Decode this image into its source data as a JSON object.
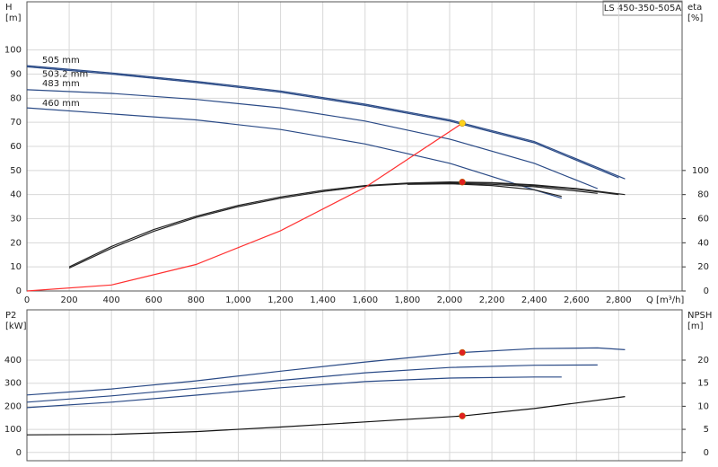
{
  "chart_data": [
    {
      "type": "line",
      "legend": "LS 450-350-505A",
      "xlabel": "Q [m³/h]",
      "ylabel": [
        "H",
        "[m]"
      ],
      "y2label": [
        "eta",
        "[%]"
      ],
      "xlim": [
        0,
        3100
      ],
      "ylim": [
        0,
        120
      ],
      "y2lim": [
        0,
        240
      ],
      "grid": true,
      "xticks": [
        0,
        200,
        400,
        600,
        800,
        {
          "value": 1000,
          "label": "1,000"
        },
        {
          "value": 1200,
          "label": "1,200"
        },
        {
          "value": 1400,
          "label": "1,400"
        },
        {
          "value": 1600,
          "label": "1,600"
        },
        {
          "value": 1800,
          "label": "1,800"
        },
        {
          "value": 2000,
          "label": "2,000"
        },
        {
          "value": 2200,
          "label": "2,200"
        },
        {
          "value": 2400,
          "label": "2,400"
        },
        {
          "value": 2600,
          "label": "2,600"
        },
        {
          "value": 2800,
          "label": "2,800"
        }
      ],
      "yticks": [
        0,
        10,
        20,
        30,
        40,
        50,
        60,
        70,
        80,
        90,
        100
      ],
      "y2ticks": [
        0,
        20,
        40,
        60,
        80,
        100
      ],
      "series": [
        {
          "name": "505 mm",
          "color": "#2a4a86",
          "x": [
            0,
            400,
            800,
            1200,
            1600,
            2000,
            2400,
            2830
          ],
          "values": [
            93.5,
            90.5,
            87,
            83,
            77.5,
            71,
            62,
            46.5
          ]
        },
        {
          "name": "503.2 mm",
          "color": "#2a4a86",
          "x": [
            0,
            400,
            800,
            1200,
            1600,
            2000,
            2400,
            2800
          ],
          "values": [
            93,
            90,
            86.5,
            82.5,
            77,
            70.5,
            61.5,
            47
          ]
        },
        {
          "name": "483 mm",
          "color": "#2a4a86",
          "x": [
            0,
            400,
            800,
            1200,
            1600,
            2000,
            2400,
            2700
          ],
          "values": [
            83.5,
            82,
            79.5,
            76,
            70.5,
            63,
            53,
            42.5
          ]
        },
        {
          "name": "460 mm",
          "color": "#2a4a86",
          "x": [
            0,
            400,
            800,
            1200,
            1600,
            2000,
            2400,
            2530
          ],
          "values": [
            76,
            73.5,
            71,
            67,
            61,
            53,
            42,
            38.5
          ]
        },
        {
          "color": "#222222",
          "axis": "y2",
          "x": [
            200,
            400,
            600,
            800,
            1000,
            1200,
            1400,
            1600,
            1800,
            2000,
            2200,
            2400,
            2600,
            2830
          ],
          "values": [
            20,
            37,
            51,
            62,
            71,
            78,
            83.5,
            87.5,
            89.5,
            90.5,
            90,
            88,
            85,
            80
          ]
        },
        {
          "color": "#222222",
          "axis": "y2",
          "x": [
            200,
            400,
            600,
            800,
            1000,
            1200,
            1400,
            1600,
            1800,
            2000,
            2200,
            2400,
            2600,
            2800
          ],
          "values": [
            19,
            35.5,
            49.5,
            61,
            70,
            77,
            82.5,
            87,
            89,
            90,
            89.5,
            87.5,
            84.5,
            80
          ]
        },
        {
          "color": "#222222",
          "axis": "y2",
          "x": [
            1800,
            2000,
            2200,
            2400,
            2600,
            2700
          ],
          "values": [
            89,
            89.5,
            88.5,
            86.5,
            83,
            81
          ]
        },
        {
          "color": "#222222",
          "axis": "y2",
          "x": [
            1800,
            2000,
            2200,
            2400,
            2530
          ],
          "values": [
            88.5,
            89,
            87.5,
            84,
            78.5
          ]
        },
        {
          "color": "#ff3030",
          "x": [
            0,
            400,
            800,
            1200,
            1600,
            2060
          ],
          "values": [
            0,
            2.5,
            11,
            25,
            43,
            69.6
          ]
        }
      ],
      "markers": [
        {
          "x": 2060,
          "y": 69.6,
          "color": "#ffd21a"
        },
        {
          "x": 2060,
          "y": 90.4,
          "axis": "y2",
          "color": "#e02020"
        }
      ]
    },
    {
      "type": "line",
      "ylabel": [
        "P2",
        "[kW]"
      ],
      "y2label": [
        "NPSH",
        "[m]"
      ],
      "xlim": [
        0,
        3100
      ],
      "ylim": [
        -36,
        618
      ],
      "y2lim": [
        -1.8,
        30.9
      ],
      "grid": true,
      "yticks": [
        0,
        100,
        200,
        300,
        400
      ],
      "y2ticks": [
        0,
        5,
        10,
        15,
        20
      ],
      "series": [
        {
          "color": "#2a4a86",
          "x": [
            0,
            400,
            800,
            1200,
            1600,
            2060,
            2400,
            2700,
            2830
          ],
          "values": [
            249,
            275,
            310,
            352,
            392,
            433,
            450,
            453,
            445
          ]
        },
        {
          "color": "#2a4a86",
          "x": [
            0,
            400,
            800,
            1200,
            1600,
            2000,
            2400,
            2700
          ],
          "values": [
            218,
            245,
            278,
            312,
            345,
            368,
            378,
            379
          ]
        },
        {
          "color": "#2a4a86",
          "x": [
            0,
            400,
            800,
            1200,
            1600,
            2000,
            2400,
            2530
          ],
          "values": [
            194,
            218,
            248,
            280,
            307,
            322,
            327,
            327
          ]
        },
        {
          "color": "#111111",
          "axis": "y2",
          "x": [
            0,
            400,
            800,
            1200,
            1600,
            2060,
            2400,
            2830
          ],
          "values": [
            3.8,
            3.9,
            4.5,
            5.5,
            6.6,
            7.9,
            9.5,
            12.1
          ]
        }
      ],
      "markers": [
        {
          "x": 2060,
          "y": 433,
          "color": "#e02020"
        },
        {
          "x": 2060,
          "y": 7.9,
          "axis": "y2",
          "color": "#e02020"
        }
      ]
    }
  ]
}
